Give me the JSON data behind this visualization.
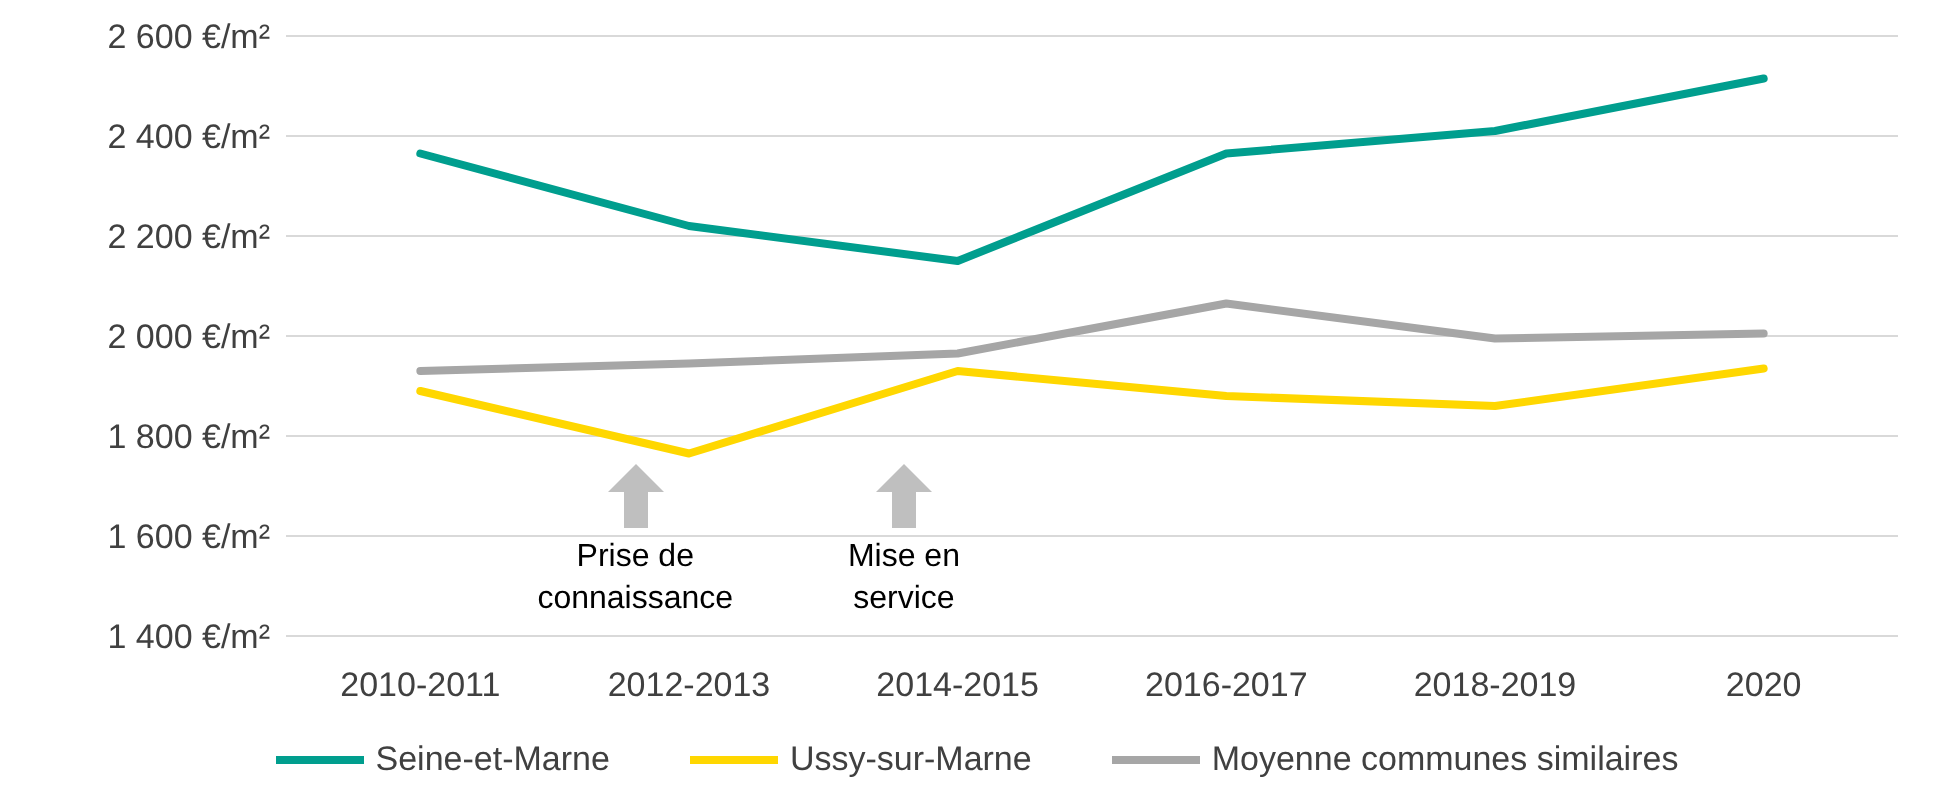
{
  "chart_data": {
    "type": "line",
    "categories": [
      "2010-2011",
      "2012-2013",
      "2014-2015",
      "2016-2017",
      "2018-2019",
      "2020"
    ],
    "series": [
      {
        "name": "Seine-et-Marne",
        "color": "#009e8e",
        "values": [
          2365,
          2220,
          2150,
          2365,
          2410,
          2515
        ]
      },
      {
        "name": "Ussy-sur-Marne",
        "color": "#ffd700",
        "values": [
          1890,
          1765,
          1930,
          1880,
          1860,
          1935
        ]
      },
      {
        "name": "Moyenne communes similaires",
        "color": "#a6a6a6",
        "values": [
          1930,
          1945,
          1965,
          2065,
          1995,
          2005
        ]
      }
    ],
    "ylim": [
      1400,
      2600
    ],
    "yticks": [
      {
        "value": 1400,
        "label": "1 400 €/m²"
      },
      {
        "value": 1600,
        "label": "1 600 €/m²"
      },
      {
        "value": 1800,
        "label": "1 800 €/m²"
      },
      {
        "value": 2000,
        "label": "2 000 €/m²"
      },
      {
        "value": 2200,
        "label": "2 200 €/m²"
      },
      {
        "value": 2400,
        "label": "2 400 €/m²"
      },
      {
        "value": 2600,
        "label": "2 600 €/m²"
      }
    ],
    "grid": "y",
    "legend": "bottom",
    "marker": "none",
    "line_style": "solid",
    "annotations": [
      "Prise de\nconnaissance",
      "Mise en\nservice"
    ]
  }
}
